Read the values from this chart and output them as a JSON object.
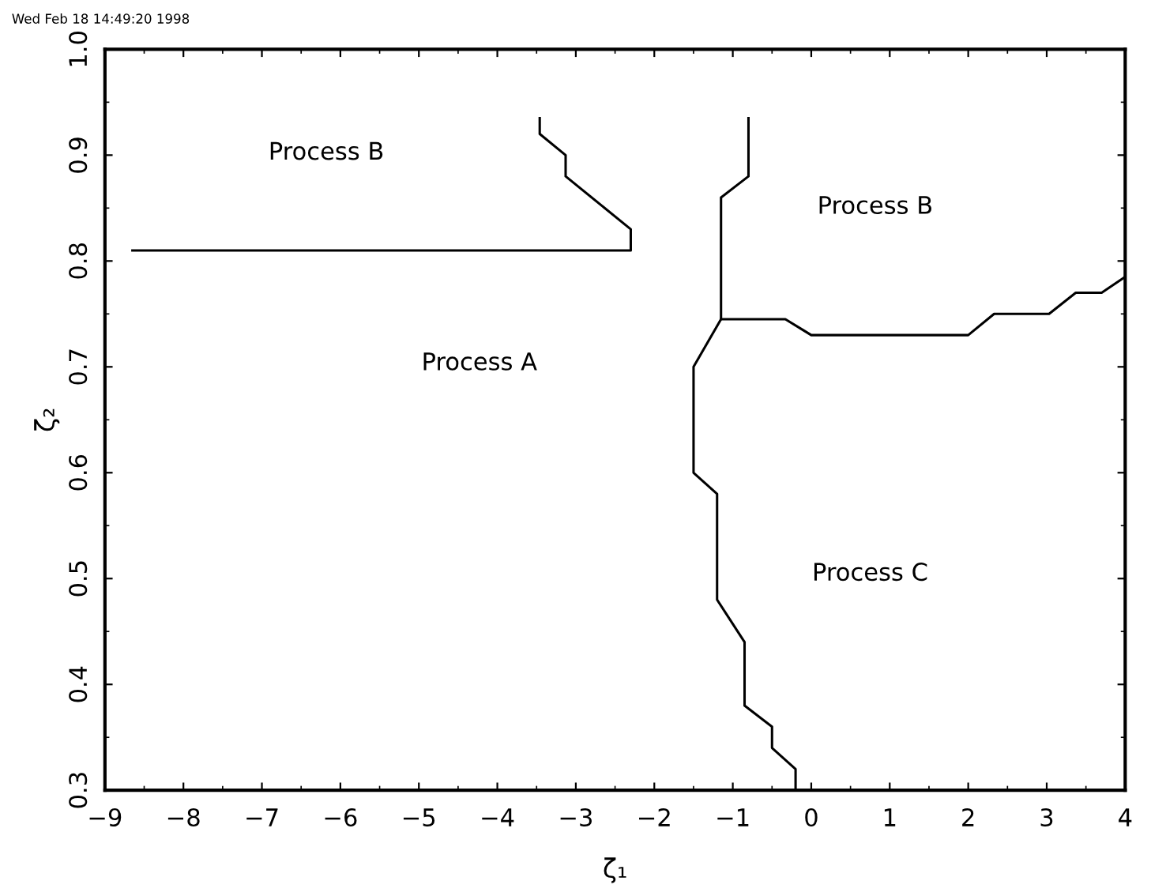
{
  "chart_data": {
    "type": "line",
    "xlabel": "ζ₁",
    "ylabel": "ζ₂",
    "xlim": [
      -9,
      4
    ],
    "ylim": [
      0.3,
      1.0
    ],
    "xticks": [
      -9,
      -8,
      -7,
      -6,
      -5,
      -4,
      -3,
      -2,
      -1,
      0,
      1,
      2,
      3,
      4
    ],
    "yticks": [
      0.3,
      0.4,
      0.5,
      0.6,
      0.7,
      0.8,
      0.9,
      {
        "value": 1,
        "label": "1.0"
      }
    ],
    "marker": "none",
    "line_style": "solid",
    "series": [
      {
        "color": "#000000",
        "x": [
          -8.65,
          -2.3,
          -2.3,
          -3.13,
          -3.13,
          -3.46,
          -3.46
        ],
        "values": [
          0.81,
          0.81,
          0.83,
          0.88,
          0.9,
          0.92,
          0.935
        ]
      },
      {
        "color": "#000000",
        "x": [
          -0.8,
          -0.8,
          -1.15,
          -1.15,
          -1.5,
          -1.5,
          -1.2,
          -1.2,
          -0.85,
          -0.85,
          -0.5,
          -0.5,
          -0.2,
          -0.2
        ],
        "values": [
          0.935,
          0.88,
          0.86,
          0.745,
          0.7,
          0.6,
          0.58,
          0.48,
          0.44,
          0.38,
          0.36,
          0.34,
          0.32,
          0.3
        ]
      },
      {
        "color": "#000000",
        "x": [
          -1.15,
          -0.33,
          0.0,
          2.0,
          2.33,
          3.03,
          3.37,
          3.7,
          4.0
        ],
        "values": [
          0.745,
          0.745,
          0.73,
          0.73,
          0.75,
          0.75,
          0.77,
          0.77,
          0.785
        ]
      }
    ],
    "annotations": [
      "Wed Feb 18 14:49:20 1998",
      "Process B",
      "Process A",
      "Process B",
      "Process C"
    ]
  }
}
